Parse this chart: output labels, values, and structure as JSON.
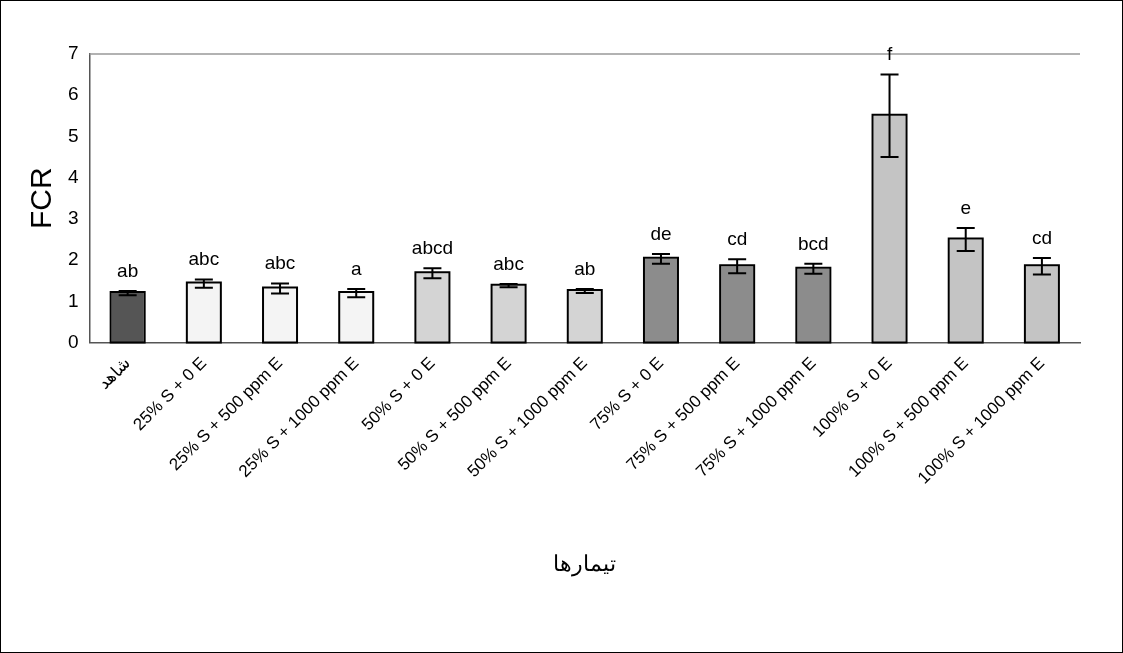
{
  "chart_data": {
    "type": "bar",
    "xlabel": "تیمارها",
    "ylabel": "FCR",
    "categories": [
      "شاهد",
      "25% S + 0 E",
      "25% S + 500 ppm E",
      "25% S + 1000 ppm E",
      "50% S + 0 E",
      "50% S + 500 ppm E",
      "50% S + 1000 ppm E",
      "75% S + 0 E",
      "75% S + 500 ppm E",
      "75% S + 1000 ppm E",
      "100% S + 0 E",
      "100% S + 500 ppm E",
      "100% S + 1000 ppm E"
    ],
    "values": [
      1.2,
      1.43,
      1.31,
      1.2,
      1.68,
      1.38,
      1.25,
      2.03,
      1.85,
      1.79,
      5.5,
      2.5,
      1.85
    ],
    "errors": [
      0.05,
      0.1,
      0.12,
      0.1,
      0.12,
      0.04,
      0.05,
      0.12,
      0.17,
      0.12,
      1.0,
      0.28,
      0.2
    ],
    "colors": [
      "#555555",
      "#f4f4f4",
      "#f4f4f4",
      "#f4f4f4",
      "#d4d4d4",
      "#d4d4d4",
      "#d4d4d4",
      "#8c8c8c",
      "#8c8c8c",
      "#8c8c8c",
      "#c4c4c4",
      "#c4c4c4",
      "#c4c4c4"
    ],
    "ylim": [
      0,
      7
    ],
    "yticks": [
      0,
      1,
      2,
      3,
      4,
      5,
      6,
      7
    ],
    "grid": false,
    "legend": false,
    "annotations": [
      {
        "text": "ab",
        "x": "شاهد",
        "y": 1.25
      },
      {
        "text": "abc",
        "x": "25% S + 0 E",
        "y": 1.53
      },
      {
        "text": "abc",
        "x": "25% S + 500 ppm E",
        "y": 1.43
      },
      {
        "text": "a",
        "x": "25% S + 1000 ppm E",
        "y": 1.3
      },
      {
        "text": "abcd",
        "x": "50% S + 0 E",
        "y": 1.8
      },
      {
        "text": "abc",
        "x": "50% S + 500 ppm E",
        "y": 1.42
      },
      {
        "text": "ab",
        "x": "50% S + 1000 ppm E",
        "y": 1.3
      },
      {
        "text": "de",
        "x": "75% S + 0 E",
        "y": 2.15
      },
      {
        "text": "cd",
        "x": "75% S + 500 ppm E",
        "y": 2.02
      },
      {
        "text": "bcd",
        "x": "75% S + 1000 ppm E",
        "y": 1.91
      },
      {
        "text": "f",
        "x": "100% S + 0 E",
        "y": 6.5
      },
      {
        "text": "e",
        "x": "100% S + 500 ppm E",
        "y": 2.78
      },
      {
        "text": "cd",
        "x": "100% S + 1000 ppm E",
        "y": 2.05
      }
    ]
  }
}
